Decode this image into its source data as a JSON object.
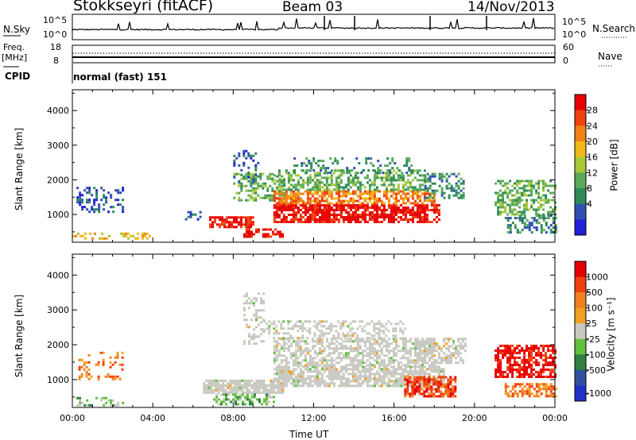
{
  "header": {
    "station": "Stokkseyri (fitACF)",
    "beam": "Beam 03",
    "date": "14/Nov/2013"
  },
  "status_panel": {
    "nsky_label": "N.Sky",
    "nsky_ticks": [
      "10^5",
      "10^0"
    ],
    "nsearch_label": "N.Search",
    "nsearch_ticks": [
      "10^5",
      "10^0"
    ],
    "freq_label_1": "Freq.",
    "freq_label_2": "[MHz]",
    "freq_ticks": [
      "18",
      "8"
    ],
    "nave_label": "Nave",
    "nave_ticks": [
      "60",
      "0"
    ],
    "cpid_label": "CPID",
    "cpid_value": "normal (fast) 151"
  },
  "colors": {
    "power_scale": [
      "#2020d8",
      "#3050b0",
      "#2e8b57",
      "#5aaa5a",
      "#a8c838",
      "#f0b818",
      "#f08018",
      "#f04010",
      "#e80000"
    ],
    "velocity_scale": [
      "#2030c8",
      "#3050a0",
      "#308040",
      "#60c040",
      "#c8c8c0",
      "#f0a020",
      "#f08020",
      "#f04010",
      "#e80000"
    ],
    "gray": "#c8c8c0"
  },
  "chart_data": [
    {
      "type": "heatmap",
      "name": "power",
      "xlabel": "",
      "ylabel": "Slant Range [km]",
      "x_ticks": [
        "00:00",
        "04:00",
        "08:00",
        "12:00",
        "16:00",
        "20:00",
        "00:00"
      ],
      "y_ticks": [
        "1000",
        "2000",
        "3000",
        "4000"
      ],
      "xlim_hours": [
        0,
        24
      ],
      "ylim_km": [
        200,
        4600
      ],
      "colorbar_label": "Power [dB]",
      "colorbar_ticks": [
        "28",
        "24",
        "20",
        "16",
        "12",
        "8",
        "4"
      ],
      "blobs": [
        {
          "t0": 0.0,
          "t1": 3.8,
          "r0": 280,
          "r1": 480,
          "level": 5,
          "density": 0.35
        },
        {
          "t0": 0.2,
          "t1": 2.5,
          "r0": 1050,
          "r1": 1800,
          "level": 1,
          "density": 0.35
        },
        {
          "t0": 5.6,
          "t1": 6.4,
          "r0": 850,
          "r1": 1100,
          "level": 1,
          "density": 0.4
        },
        {
          "t0": 6.8,
          "t1": 9.0,
          "r0": 650,
          "r1": 950,
          "level": 8,
          "density": 0.8
        },
        {
          "t0": 8.5,
          "t1": 10.5,
          "r0": 350,
          "r1": 600,
          "level": 8,
          "density": 0.6
        },
        {
          "t0": 8.0,
          "t1": 10.5,
          "r0": 1400,
          "r1": 2200,
          "level": 3,
          "density": 0.45
        },
        {
          "t0": 10.0,
          "t1": 18.3,
          "r0": 800,
          "r1": 1300,
          "level": 8,
          "density": 0.8
        },
        {
          "t0": 10.0,
          "t1": 18.0,
          "r0": 1300,
          "r1": 1700,
          "level": 6,
          "density": 0.65
        },
        {
          "t0": 10.0,
          "t1": 17.5,
          "r0": 1700,
          "r1": 2300,
          "level": 3,
          "density": 0.5
        },
        {
          "t0": 11.0,
          "t1": 17.0,
          "r0": 2200,
          "r1": 2650,
          "level": 2,
          "density": 0.25
        },
        {
          "t0": 17.5,
          "t1": 19.5,
          "r0": 1500,
          "r1": 2200,
          "level": 2,
          "density": 0.45
        },
        {
          "t0": 8.0,
          "t1": 9.3,
          "r0": 1900,
          "r1": 3000,
          "level": 1,
          "density": 0.2
        },
        {
          "t0": 21.0,
          "t1": 24.0,
          "r0": 1000,
          "r1": 2000,
          "level": 3,
          "density": 0.5
        },
        {
          "t0": 21.5,
          "t1": 24.0,
          "r0": 500,
          "r1": 1000,
          "level": 2,
          "density": 0.4
        }
      ]
    },
    {
      "type": "heatmap",
      "name": "velocity",
      "xlabel": "Time UT",
      "ylabel": "Slant Range [km]",
      "x_ticks": [
        "00:00",
        "04:00",
        "08:00",
        "12:00",
        "16:00",
        "20:00",
        "00:00"
      ],
      "y_ticks": [
        "1000",
        "2000",
        "3000",
        "4000"
      ],
      "xlim_hours": [
        0,
        24
      ],
      "ylim_km": [
        200,
        4600
      ],
      "colorbar_label": "Velocity [m s⁻¹]",
      "colorbar_ticks": [
        "1000",
        "500",
        "100",
        "25",
        "-25",
        "-100",
        "-500",
        "-1000"
      ],
      "blobs": [
        {
          "t0": 0.2,
          "t1": 2.5,
          "r0": 280,
          "r1": 500,
          "level": 3,
          "density": 0.4
        },
        {
          "t0": 0.3,
          "t1": 2.5,
          "r0": 1000,
          "r1": 1800,
          "level": 6,
          "density": 0.25
        },
        {
          "t0": 6.5,
          "t1": 10.5,
          "r0": 600,
          "r1": 1000,
          "level": 4,
          "density": 0.85
        },
        {
          "t0": 7.0,
          "t1": 10.0,
          "r0": 300,
          "r1": 600,
          "level": 3,
          "density": 0.5
        },
        {
          "t0": 10.0,
          "t1": 18.5,
          "r0": 800,
          "r1": 1400,
          "level": 4,
          "density": 0.8
        },
        {
          "t0": 10.0,
          "t1": 18.0,
          "r0": 1400,
          "r1": 2200,
          "level": 4,
          "density": 0.6
        },
        {
          "t0": 9.5,
          "t1": 16.5,
          "r0": 2200,
          "r1": 2700,
          "level": 4,
          "density": 0.35
        },
        {
          "t0": 8.5,
          "t1": 9.5,
          "r0": 2000,
          "r1": 3500,
          "level": 4,
          "density": 0.35
        },
        {
          "t0": 17.0,
          "t1": 19.5,
          "r0": 1500,
          "r1": 2200,
          "level": 4,
          "density": 0.55
        },
        {
          "t0": 16.5,
          "t1": 19.0,
          "r0": 500,
          "r1": 1100,
          "level": 7,
          "density": 0.75
        },
        {
          "t0": 21.0,
          "t1": 24.0,
          "r0": 1100,
          "r1": 2000,
          "level": 8,
          "density": 0.7
        },
        {
          "t0": 21.5,
          "t1": 24.0,
          "r0": 500,
          "r1": 900,
          "level": 6,
          "density": 0.6
        }
      ]
    }
  ]
}
